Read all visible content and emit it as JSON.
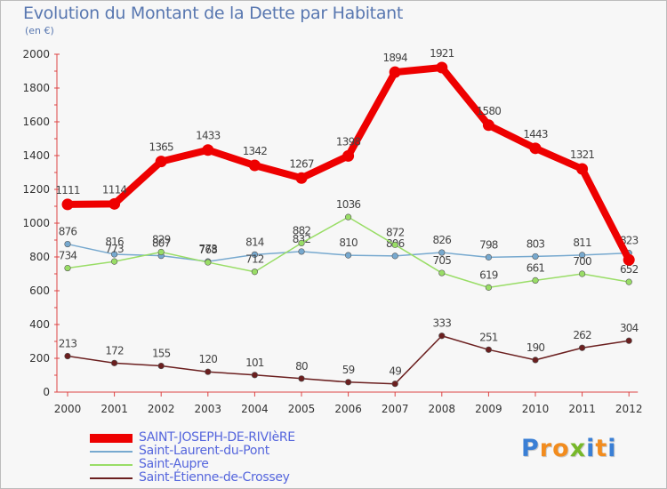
{
  "title": "Evolution du Montant de la Dette par Habitant",
  "subtitle": "(en €)",
  "chart_data": {
    "type": "line",
    "title": "Evolution du Montant de la Dette par Habitant",
    "subtitle": "(en €)",
    "x": [
      "2000",
      "2001",
      "2002",
      "2003",
      "2004",
      "2005",
      "2006",
      "2007",
      "2008",
      "2009",
      "2010",
      "2011",
      "2012"
    ],
    "yticks": [
      "0",
      "200",
      "400",
      "600",
      "800",
      "1000",
      "1200",
      "1400",
      "1600",
      "1800",
      "2000"
    ],
    "ylim": [
      0,
      2000
    ],
    "grid": false,
    "legend_position": "bottom",
    "series": [
      {
        "name": "SAINT-JOSEPH-DE-RIVIèRE",
        "color": "#ee0000",
        "highlight": true,
        "values": [
          1111,
          1114,
          1365,
          1433,
          1342,
          1267,
          1398,
          1894,
          1921,
          1580,
          1443,
          1321,
          783
        ],
        "labels": [
          "1111",
          "1114",
          "1365",
          "1433",
          "1342",
          "1267",
          "1398",
          "1894",
          "1921",
          "1580",
          "1443",
          "1321",
          ""
        ]
      },
      {
        "name": "Saint-Laurent-du-Pont",
        "color": "#77a9cf",
        "highlight": false,
        "values": [
          876,
          816,
          807,
          773,
          814,
          832,
          810,
          806,
          826,
          798,
          803,
          811,
          823
        ],
        "labels": [
          "876",
          "816",
          "807",
          "773",
          "814",
          "832",
          "810",
          "806",
          "826",
          "798",
          "803",
          "811",
          "823"
        ]
      },
      {
        "name": "Saint-Aupre",
        "color": "#99dd66",
        "highlight": false,
        "values": [
          734,
          773,
          829,
          768,
          712,
          882,
          1036,
          872,
          705,
          619,
          661,
          700,
          652
        ],
        "labels": [
          "734",
          "773",
          "829",
          "768",
          "712",
          "882",
          "1036",
          "872",
          "705",
          "619",
          "661",
          "700",
          "652"
        ]
      },
      {
        "name": "Saint-Étienne-de-Crossey",
        "color": "#6b1f1f",
        "highlight": false,
        "values": [
          213,
          172,
          155,
          120,
          101,
          80,
          59,
          49,
          333,
          251,
          190,
          262,
          304
        ],
        "labels": [
          "213",
          "172",
          "155",
          "120",
          "101",
          "80",
          "59",
          "49",
          "333",
          "251",
          "190",
          "262",
          "304"
        ]
      }
    ]
  },
  "legend": [
    {
      "label": "SAINT-JOSEPH-DE-RIVIèRE",
      "color": "#ee0000"
    },
    {
      "label": "Saint-Laurent-du-Pont",
      "color": "#77a9cf"
    },
    {
      "label": "Saint-Aupre",
      "color": "#99dd66"
    },
    {
      "label": "Saint-Étienne-de-Crossey",
      "color": "#6b1f1f"
    }
  ],
  "logo": {
    "letters": [
      "P",
      "r",
      "o",
      "x",
      "i",
      "t",
      "i"
    ],
    "colors": [
      "#3a7fd5",
      "#f28c1e",
      "#f28c1e",
      "#77b82a",
      "#3a7fd5",
      "#f28c1e",
      "#3a7fd5"
    ]
  }
}
